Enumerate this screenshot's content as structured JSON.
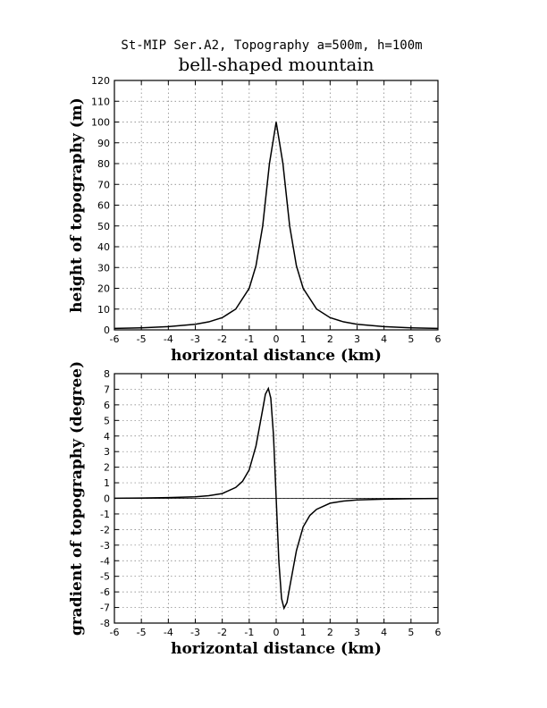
{
  "figure": {
    "supertitle": "St-MIP Ser.A2, Topography a=500m, h=100m",
    "title": "bell-shaped mountain"
  },
  "chart_data": [
    {
      "type": "line",
      "xlabel": "horizontal distance (km)",
      "ylabel": "height of topography (m)",
      "xlim": [
        -6,
        6
      ],
      "ylim": [
        0,
        120
      ],
      "xticks": [
        -6,
        -5,
        -4,
        -3,
        -2,
        -1,
        0,
        1,
        2,
        3,
        4,
        5,
        6
      ],
      "yticks": [
        0,
        10,
        20,
        30,
        40,
        50,
        60,
        70,
        80,
        90,
        100,
        110,
        120
      ],
      "grid": true,
      "series": [
        {
          "x": [
            -6,
            -5,
            -4,
            -3,
            -2.5,
            -2,
            -1.5,
            -1,
            -0.75,
            -0.5,
            -0.25,
            0,
            0.25,
            0.5,
            0.75,
            1,
            1.5,
            2,
            2.5,
            3,
            4,
            5,
            6
          ],
          "y": [
            0.69,
            0.99,
            1.54,
            2.7,
            3.85,
            5.88,
            10,
            20,
            30.8,
            50,
            80,
            100,
            80,
            50,
            30.8,
            20,
            10,
            5.88,
            3.85,
            2.7,
            1.54,
            0.99,
            0.69
          ]
        }
      ]
    },
    {
      "type": "line",
      "xlabel": "horizontal distance (km)",
      "ylabel": "gradient of topography (degree)",
      "xlim": [
        -6,
        6
      ],
      "ylim": [
        -8,
        8
      ],
      "xticks": [
        -6,
        -5,
        -4,
        -3,
        -2,
        -1,
        0,
        1,
        2,
        3,
        4,
        5,
        6
      ],
      "yticks": [
        -8,
        -7,
        -6,
        -5,
        -4,
        -3,
        -2,
        -1,
        0,
        1,
        2,
        3,
        4,
        5,
        6,
        7,
        8
      ],
      "grid": true,
      "series": [
        {
          "x": [
            -6,
            -5,
            -4,
            -3,
            -2.5,
            -2,
            -1.5,
            -1.25,
            -1,
            -0.75,
            -0.5,
            -0.4,
            -0.29,
            -0.2,
            -0.1,
            0,
            0.1,
            0.2,
            0.29,
            0.4,
            0.5,
            0.75,
            1,
            1.25,
            1.5,
            2,
            2.5,
            3,
            4,
            5,
            6
          ],
          "y": [
            0.01,
            0.02,
            0.05,
            0.1,
            0.17,
            0.31,
            0.7,
            1.09,
            1.83,
            3.36,
            5.71,
            6.68,
            7.05,
            6.43,
            4.06,
            0,
            -4.06,
            -6.43,
            -7.05,
            -6.68,
            -5.71,
            -3.36,
            -1.83,
            -1.09,
            -0.7,
            -0.31,
            -0.17,
            -0.1,
            -0.05,
            -0.02,
            -0.01
          ]
        }
      ]
    }
  ]
}
